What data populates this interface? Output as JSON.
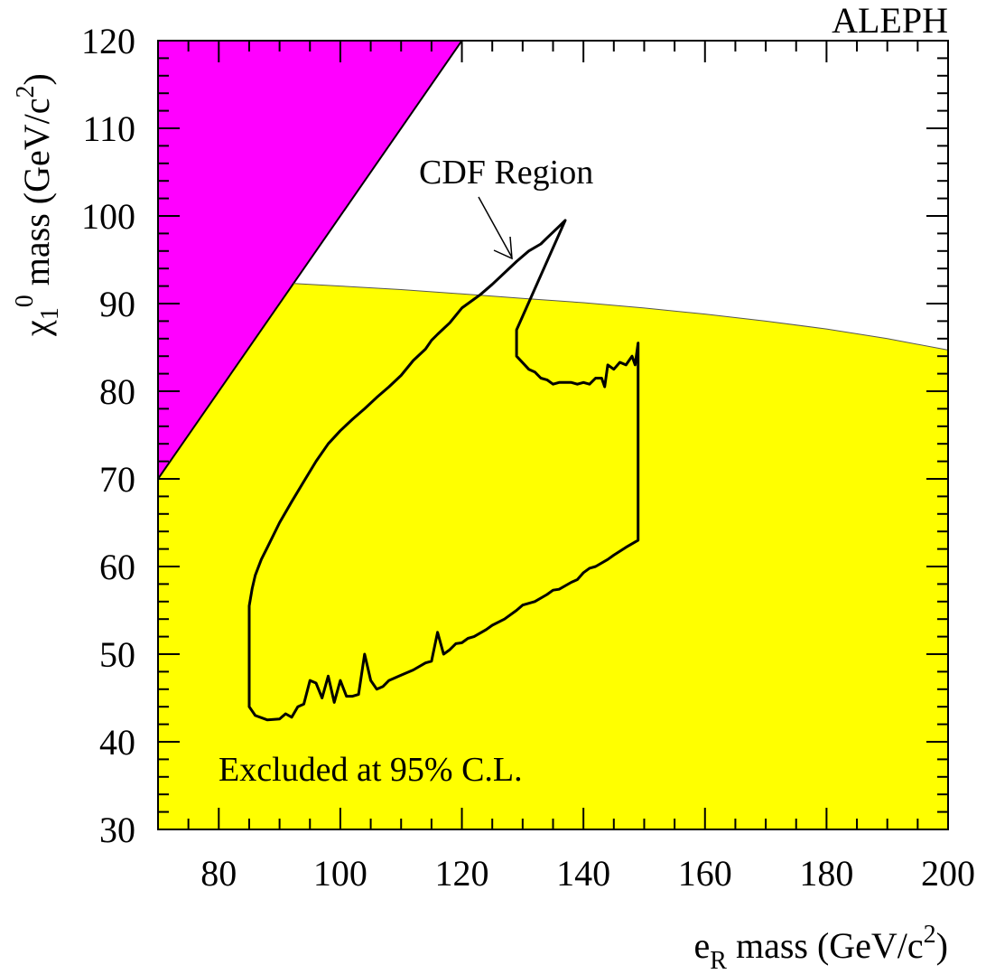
{
  "chart_data": {
    "type": "area",
    "title": "ALEPH",
    "xlabel": {
      "base": "e",
      "sub": "R",
      "rest": " mass  (GeV/c",
      "sup": "2",
      "close": ")"
    },
    "ylabel": {
      "base": "χ",
      "sub": "1",
      "sup0": "0",
      "rest": " mass  (GeV/c",
      "sup": "2",
      "close": ")"
    },
    "xlim": [
      70,
      200
    ],
    "ylim": [
      30,
      120
    ],
    "xticks": [
      80,
      100,
      120,
      140,
      160,
      180,
      200
    ],
    "yticks": [
      30,
      40,
      50,
      60,
      70,
      80,
      90,
      100,
      110,
      120
    ],
    "xtick_labels": [
      "80",
      "100",
      "120",
      "140",
      "160",
      "180",
      "200"
    ],
    "ytick_labels": [
      "30",
      "40",
      "50",
      "60",
      "70",
      "80",
      "90",
      "100",
      "110",
      "120"
    ],
    "colors": {
      "excluded": "#ffff00",
      "forbidden": "#ff00ff",
      "line": "#000000"
    },
    "regions": {
      "forbidden_triangle": [
        [
          70,
          70
        ],
        [
          70,
          120
        ],
        [
          120,
          120
        ]
      ],
      "kinematic_boundary": [
        [
          70,
          70
        ],
        [
          120,
          120
        ]
      ],
      "excluded_upper_edge": [
        [
          92.3,
          92.3
        ],
        [
          100,
          92.0
        ],
        [
          110,
          91.6
        ],
        [
          120,
          91.1
        ],
        [
          130,
          90.6
        ],
        [
          140,
          90.1
        ],
        [
          150,
          89.5
        ],
        [
          160,
          88.8
        ],
        [
          170,
          88.0
        ],
        [
          180,
          87.1
        ],
        [
          190,
          86.0
        ],
        [
          200,
          84.7
        ]
      ]
    },
    "cdf_region": [
      [
        85,
        44
      ],
      [
        86,
        43
      ],
      [
        88,
        42.5
      ],
      [
        90,
        42.6
      ],
      [
        91,
        43.2
      ],
      [
        92,
        42.8
      ],
      [
        93,
        44
      ],
      [
        94,
        44.3
      ],
      [
        95,
        47
      ],
      [
        96,
        46.7
      ],
      [
        97,
        45
      ],
      [
        98,
        47.5
      ],
      [
        99,
        44.5
      ],
      [
        100,
        47
      ],
      [
        101,
        45.2
      ],
      [
        102,
        45.2
      ],
      [
        103,
        45.4
      ],
      [
        104,
        50
      ],
      [
        105,
        47
      ],
      [
        106,
        46
      ],
      [
        107,
        46.3
      ],
      [
        108,
        47
      ],
      [
        110,
        47.6
      ],
      [
        112,
        48.2
      ],
      [
        114,
        49
      ],
      [
        115,
        49.2
      ],
      [
        116,
        52.5
      ],
      [
        117,
        50
      ],
      [
        118,
        50.5
      ],
      [
        119,
        51.2
      ],
      [
        120,
        51.3
      ],
      [
        121,
        51.8
      ],
      [
        122,
        52
      ],
      [
        124,
        52.8
      ],
      [
        125,
        53.3
      ],
      [
        127,
        54
      ],
      [
        129,
        55
      ],
      [
        130,
        55.6
      ],
      [
        132,
        56
      ],
      [
        134,
        56.8
      ],
      [
        135,
        57.3
      ],
      [
        136,
        57.4
      ],
      [
        138,
        58.2
      ],
      [
        139,
        58.5
      ],
      [
        140,
        59.3
      ],
      [
        141,
        59.8
      ],
      [
        142,
        60
      ],
      [
        144,
        60.8
      ],
      [
        145,
        61.3
      ],
      [
        147,
        62.2
      ],
      [
        149,
        63
      ],
      [
        149,
        85.5
      ],
      [
        148.5,
        83
      ],
      [
        148,
        84
      ],
      [
        147,
        83
      ],
      [
        146,
        83.3
      ],
      [
        145,
        82.5
      ],
      [
        144,
        83
      ],
      [
        143.5,
        80.5
      ],
      [
        143,
        81.5
      ],
      [
        142,
        81.5
      ],
      [
        141,
        80.8
      ],
      [
        140,
        81
      ],
      [
        139,
        80.8
      ],
      [
        138,
        81
      ],
      [
        136,
        81
      ],
      [
        135,
        80.8
      ],
      [
        134,
        81.3
      ],
      [
        133,
        81.5
      ],
      [
        132,
        82.2
      ],
      [
        131,
        82.5
      ],
      [
        129,
        84
      ],
      [
        129,
        87
      ],
      [
        137,
        99.5
      ],
      [
        136,
        98.8
      ],
      [
        134,
        97.5
      ],
      [
        133,
        96.8
      ],
      [
        131,
        96
      ],
      [
        129,
        94.8
      ],
      [
        127,
        93.5
      ],
      [
        125,
        92.2
      ],
      [
        123,
        91
      ],
      [
        122,
        90.5
      ],
      [
        120,
        89.5
      ],
      [
        118,
        87.8
      ],
      [
        116,
        86.5
      ],
      [
        115,
        85.8
      ],
      [
        114,
        84.8
      ],
      [
        112,
        83.5
      ],
      [
        110,
        81.8
      ],
      [
        108,
        80.5
      ],
      [
        106,
        79.3
      ],
      [
        104,
        78
      ],
      [
        102,
        76.8
      ],
      [
        100,
        75.5
      ],
      [
        98,
        74
      ],
      [
        96,
        72
      ],
      [
        94,
        69.7
      ],
      [
        92,
        67.4
      ],
      [
        90,
        65
      ],
      [
        88,
        62.2
      ],
      [
        87,
        60.8
      ],
      [
        86,
        59
      ],
      [
        85.5,
        57.5
      ],
      [
        85,
        55.5
      ],
      [
        85,
        52
      ],
      [
        85,
        44
      ]
    ],
    "annotations": [
      {
        "text": "CDF  Region",
        "xy": [
          128,
          95
        ],
        "xytext": [
          130,
          108.5
        ]
      },
      {
        "text": "Excluded at 95% C.L.",
        "xy": [
          75,
          37
        ]
      }
    ]
  }
}
